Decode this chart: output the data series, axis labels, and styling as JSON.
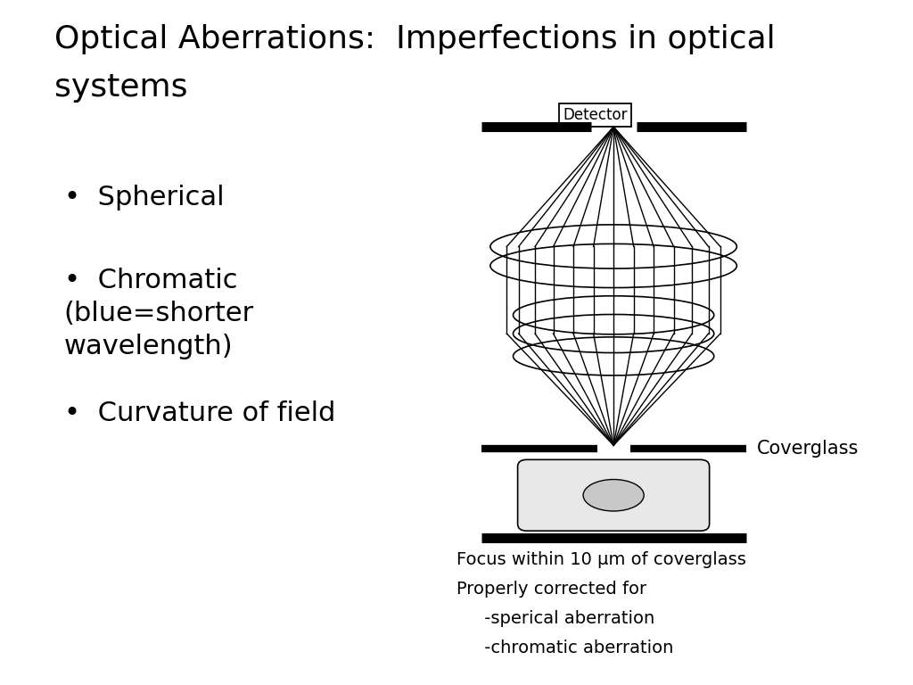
{
  "title_line1": "Optical Aberrations:  Imperfections in optical",
  "title_line2": "systems",
  "title_fontsize": 26,
  "title_color": "#000000",
  "background_color": "#ffffff",
  "bullets": [
    "Spherical",
    "Chromatic\n(blue=shorter\nwavelength)",
    "Curvature of field"
  ],
  "bullet_fontsize": 22,
  "caption_lines": [
    "Focus within 10 μm of coverglass",
    "Properly corrected for",
    "     -sperical aberration",
    "     -chromatic aberration"
  ],
  "caption_fontsize": 14,
  "detector_label": "Detector",
  "coverglass_label": "Coverglass"
}
